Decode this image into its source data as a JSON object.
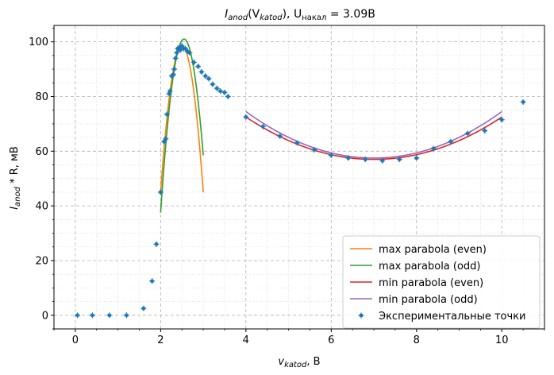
{
  "chart_data": {
    "type": "scatter",
    "title_main": "I",
    "title_main_sub": "anod",
    "title_open": "(V",
    "title_var_sub": "katod",
    "title_close": "), U",
    "title_u_sub": "накал",
    "title_eq": " = 3.09B",
    "xlabel_main": "v",
    "xlabel_sub": "katod",
    "xlabel_unit": ", В",
    "ylabel_main": "I",
    "ylabel_sub": "anod",
    "ylabel_rest": " * R, мВ",
    "xlim": [
      -0.5,
      11
    ],
    "ylim": [
      -5,
      106
    ],
    "xticks": [
      0,
      2,
      4,
      6,
      8,
      10
    ],
    "yticks": [
      0,
      20,
      40,
      60,
      80,
      100
    ],
    "grid": true,
    "minor_grid": true,
    "legend_position": "lower-right",
    "colors": {
      "scatter": "#1f77b4",
      "max_even": "#ff7f0e",
      "max_odd": "#2ca02c",
      "min_even": "#d62728",
      "min_odd": "#9467bd"
    },
    "scatter": {
      "name": "Экспериментальные точки",
      "points": [
        [
          0.05,
          0
        ],
        [
          0.4,
          0
        ],
        [
          0.8,
          0
        ],
        [
          1.2,
          0
        ],
        [
          1.6,
          2.5
        ],
        [
          1.8,
          12.5
        ],
        [
          1.9,
          26
        ],
        [
          2.0,
          45
        ],
        [
          2.08,
          63.5
        ],
        [
          2.12,
          64.5
        ],
        [
          2.15,
          73.5
        ],
        [
          2.2,
          81
        ],
        [
          2.22,
          82
        ],
        [
          2.26,
          87.5
        ],
        [
          2.3,
          88
        ],
        [
          2.32,
          90
        ],
        [
          2.35,
          94
        ],
        [
          2.38,
          96
        ],
        [
          2.4,
          97.5
        ],
        [
          2.44,
          98
        ],
        [
          2.46,
          97
        ],
        [
          2.5,
          98.5
        ],
        [
          2.54,
          97.5
        ],
        [
          2.58,
          97.5
        ],
        [
          2.63,
          96.5
        ],
        [
          2.68,
          96
        ],
        [
          2.78,
          92.5
        ],
        [
          2.88,
          91
        ],
        [
          2.96,
          89
        ],
        [
          3.05,
          87.5
        ],
        [
          3.13,
          86.5
        ],
        [
          3.22,
          84.5
        ],
        [
          3.32,
          83
        ],
        [
          3.4,
          82
        ],
        [
          3.5,
          81.5
        ],
        [
          3.58,
          80
        ],
        [
          4.0,
          72.5
        ],
        [
          4.4,
          69
        ],
        [
          4.8,
          65.5
        ],
        [
          5.2,
          63
        ],
        [
          5.6,
          60.5
        ],
        [
          6.0,
          58.5
        ],
        [
          6.4,
          57.5
        ],
        [
          6.8,
          57
        ],
        [
          7.2,
          56.5
        ],
        [
          7.6,
          57
        ],
        [
          8.0,
          57.5
        ],
        [
          8.4,
          61
        ],
        [
          8.8,
          63.5
        ],
        [
          9.2,
          66.5
        ],
        [
          9.6,
          67.5
        ],
        [
          10.0,
          71.5
        ],
        [
          10.5,
          78
        ]
      ]
    },
    "parabolas": [
      {
        "name": "max parabola (even)",
        "x_range": [
          2.0,
          3.0
        ],
        "vertex": [
          2.5,
          98.5
        ],
        "y_at_end": 45
      },
      {
        "name": "max parabola (odd)",
        "x_range": [
          2.0,
          3.0
        ],
        "vertex": [
          2.55,
          101
        ],
        "y_at_end": 58.5
      },
      {
        "name": "min parabola (even)",
        "x_range": [
          4.0,
          10.0
        ],
        "vertex": [
          7.0,
          57
        ],
        "y_at_end": 72.5
      },
      {
        "name": "min parabola (odd)",
        "x_range": [
          4.0,
          10.0
        ],
        "vertex": [
          7.0,
          57.5
        ],
        "y_at_end": 74.5
      }
    ]
  }
}
